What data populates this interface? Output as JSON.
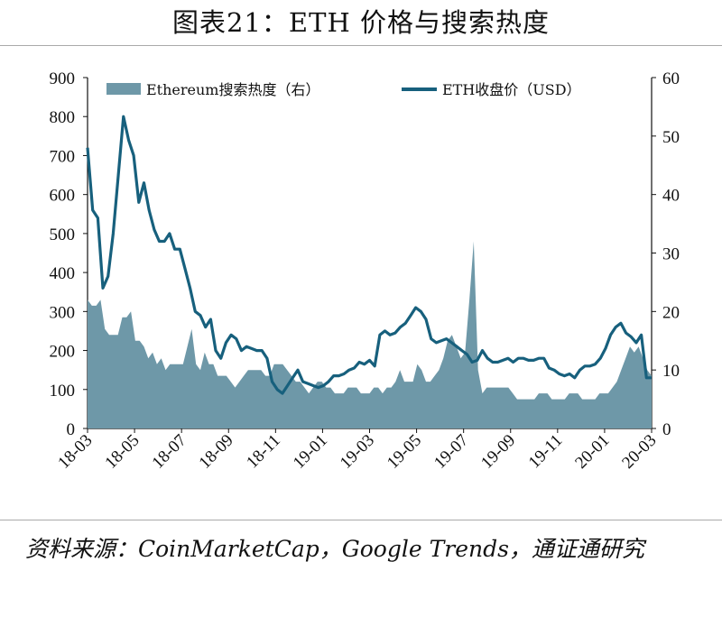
{
  "header": {
    "title": "图表21：ETH 价格与搜索热度"
  },
  "footer": {
    "source": "资料来源：CoinMarketCap，Google Trends，通证通研究"
  },
  "colors": {
    "area": "#6e98a8",
    "line": "#17607d",
    "axis": "#111111"
  },
  "chart_data": {
    "type": "area+line",
    "title": "ETH 价格与搜索热度",
    "x_tick_labels": [
      "18-03",
      "18-05",
      "18-07",
      "18-09",
      "18-11",
      "19-01",
      "19-03",
      "19-05",
      "19-07",
      "19-09",
      "19-11",
      "20-01",
      "20-03"
    ],
    "y_left": {
      "range": [
        0,
        900
      ],
      "ticks": [
        0,
        100,
        200,
        300,
        400,
        500,
        600,
        700,
        800,
        900
      ]
    },
    "y_right": {
      "range": [
        0,
        60
      ],
      "ticks": [
        0,
        10,
        20,
        30,
        40,
        50,
        60
      ]
    },
    "legend": {
      "position": "top",
      "entries": [
        "Ethereum搜索热度（右）",
        "ETH收盘价（USD）"
      ]
    },
    "series": [
      {
        "name": "Ethereum搜索热度（右）",
        "kind": "area",
        "axis": "right",
        "values": [
          22,
          21,
          21,
          22,
          17,
          16,
          16,
          16,
          19,
          19,
          20,
          15,
          15,
          14,
          12,
          13,
          11,
          12,
          10,
          11,
          11,
          11,
          11,
          14,
          17,
          11,
          10,
          13,
          11,
          11,
          9,
          9,
          9,
          8,
          7,
          8,
          9,
          10,
          10,
          10,
          10,
          9,
          9,
          11,
          11,
          11,
          10,
          9,
          8,
          8,
          7,
          6,
          7,
          8,
          8,
          7,
          7,
          6,
          6,
          6,
          7,
          7,
          7,
          6,
          6,
          6,
          7,
          7,
          6,
          7,
          7,
          8,
          10,
          8,
          8,
          8,
          11,
          10,
          8,
          8,
          9,
          10,
          12,
          15,
          16,
          14,
          12,
          13,
          22,
          32,
          10,
          6,
          7,
          7,
          7,
          7,
          7,
          7,
          6,
          5,
          5,
          5,
          5,
          5,
          6,
          6,
          6,
          5,
          5,
          5,
          5,
          6,
          6,
          6,
          5,
          5,
          5,
          5,
          6,
          6,
          6,
          7,
          8,
          10,
          12,
          14,
          13,
          14,
          12,
          10,
          9
        ]
      },
      {
        "name": "ETH收盘价（USD）",
        "kind": "line",
        "axis": "left",
        "values": [
          720,
          560,
          540,
          360,
          390,
          500,
          650,
          800,
          740,
          700,
          580,
          630,
          560,
          510,
          480,
          480,
          500,
          460,
          460,
          410,
          360,
          300,
          290,
          260,
          280,
          200,
          180,
          220,
          240,
          230,
          200,
          210,
          205,
          200,
          200,
          180,
          120,
          100,
          90,
          110,
          130,
          150,
          120,
          115,
          110,
          105,
          110,
          120,
          135,
          135,
          140,
          150,
          155,
          170,
          165,
          175,
          160,
          240,
          250,
          240,
          245,
          260,
          270,
          290,
          310,
          300,
          280,
          230,
          220,
          225,
          230,
          220,
          210,
          200,
          190,
          170,
          175,
          200,
          180,
          170,
          170,
          175,
          180,
          170,
          180,
          180,
          175,
          175,
          180,
          180,
          155,
          150,
          140,
          135,
          140,
          130,
          150,
          160,
          160,
          165,
          180,
          205,
          240,
          260,
          270,
          245,
          235,
          220,
          240,
          130,
          130
        ]
      }
    ]
  }
}
